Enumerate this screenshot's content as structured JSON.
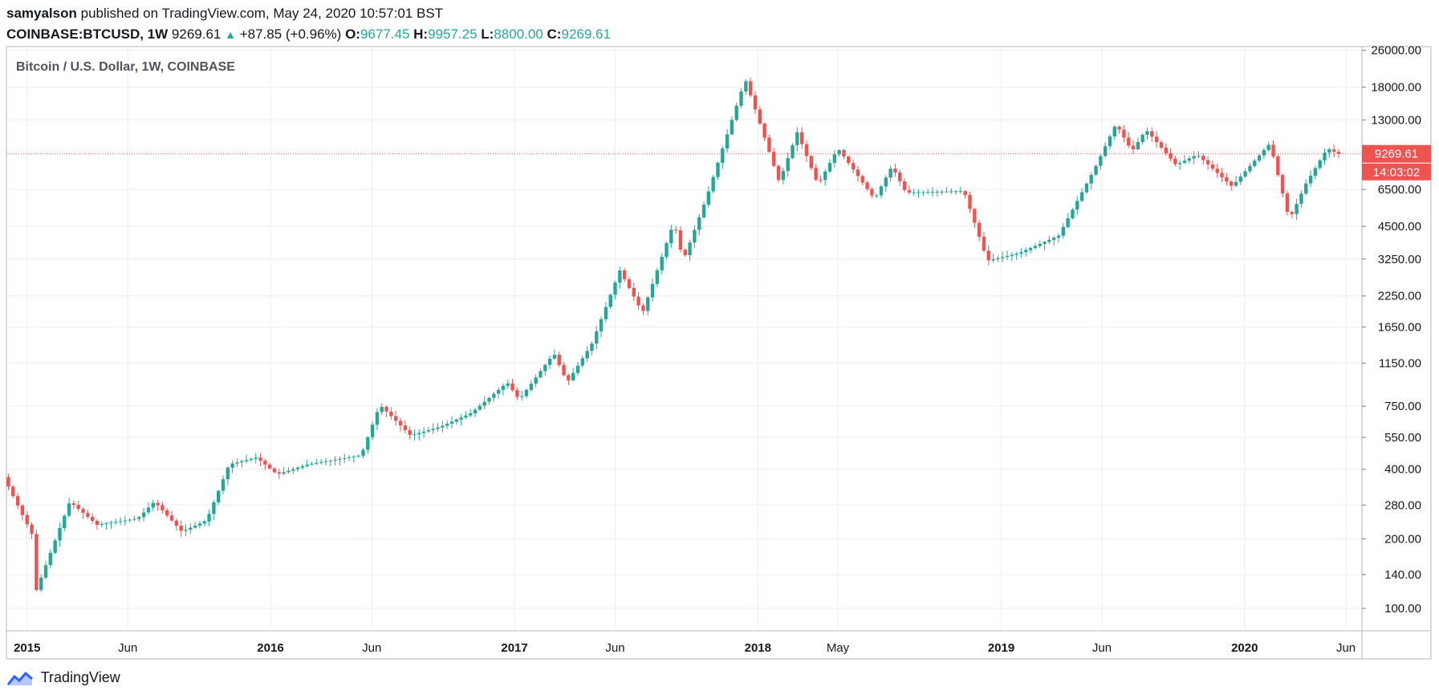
{
  "header": {
    "author": "samyalson",
    "published_text": "published on TradingView.com, May 24, 2020 10:57:01 BST",
    "symbol": "COINBASE:BTCUSD, 1W",
    "last": "9269.61",
    "change": "+87.85 (+0.96%)",
    "o_label": "O:",
    "o_value": "9677.45",
    "h_label": "H:",
    "h_value": "9957.25",
    "l_label": "L:",
    "l_value": "8800.00",
    "c_label": "C:",
    "c_value": "9269.61"
  },
  "footer": {
    "brand": "TradingView",
    "logo_icon": "tradingview-cloud-icon"
  },
  "colors": {
    "up": "#26a69a",
    "down": "#ef5350",
    "grid": "#e8eef3",
    "axis": "#787b86",
    "price_line": "#ef5350"
  },
  "chart_data": {
    "type": "candlestick",
    "title": "Bitcoin / U.S. Dollar, 1W, COINBASE",
    "scale": "log",
    "ylim": [
      80,
      27000
    ],
    "y_ticks": [
      100,
      140,
      200,
      280,
      400,
      550,
      750,
      1150,
      1650,
      2250,
      3250,
      4500,
      6500,
      9269.61,
      13000,
      18000,
      26000
    ],
    "y_tick_labels": [
      "100.00",
      "140.00",
      "200.00",
      "280.00",
      "400.00",
      "550.00",
      "750.00",
      "1150.00",
      "1650.00",
      "2250.00",
      "3250.00",
      "4500.00",
      "6500.00",
      "9269.61",
      "13000.00",
      "18000.00",
      "26000.00"
    ],
    "x_range": [
      "2014-12-01",
      "2020-06-25"
    ],
    "x_ticks": [
      {
        "date": "2015-01-01",
        "label": "2015",
        "bold": true
      },
      {
        "date": "2015-06-01",
        "label": "Jun",
        "bold": false
      },
      {
        "date": "2016-01-01",
        "label": "2016",
        "bold": true
      },
      {
        "date": "2016-06-01",
        "label": "Jun",
        "bold": false
      },
      {
        "date": "2017-01-01",
        "label": "2017",
        "bold": true
      },
      {
        "date": "2017-06-01",
        "label": "Jun",
        "bold": false
      },
      {
        "date": "2018-01-01",
        "label": "2018",
        "bold": true
      },
      {
        "date": "2018-05-01",
        "label": "May",
        "bold": false
      },
      {
        "date": "2019-01-01",
        "label": "2019",
        "bold": true
      },
      {
        "date": "2019-06-01",
        "label": "Jun",
        "bold": false
      },
      {
        "date": "2020-01-01",
        "label": "2020",
        "bold": true
      },
      {
        "date": "2020-06-01",
        "label": "Jun",
        "bold": false
      }
    ],
    "last_price": 9269.61,
    "last_price_label": "9269.61",
    "countdown_label": "14:03:02",
    "key_points": [
      {
        "date": "2014-12-01",
        "close": 370
      },
      {
        "date": "2015-01-12",
        "close": 210
      },
      {
        "date": "2015-01-14",
        "close": 110
      },
      {
        "date": "2015-03-10",
        "close": 290
      },
      {
        "date": "2015-04-20",
        "close": 230
      },
      {
        "date": "2015-06-20",
        "close": 245
      },
      {
        "date": "2015-07-15",
        "close": 290
      },
      {
        "date": "2015-08-25",
        "close": 215
      },
      {
        "date": "2015-10-01",
        "close": 240
      },
      {
        "date": "2015-11-04",
        "close": 420
      },
      {
        "date": "2015-12-15",
        "close": 450
      },
      {
        "date": "2016-01-15",
        "close": 380
      },
      {
        "date": "2016-03-01",
        "close": 420
      },
      {
        "date": "2016-05-20",
        "close": 460
      },
      {
        "date": "2016-06-17",
        "close": 760
      },
      {
        "date": "2016-08-02",
        "close": 560
      },
      {
        "date": "2016-09-15",
        "close": 610
      },
      {
        "date": "2016-11-01",
        "close": 700
      },
      {
        "date": "2016-12-25",
        "close": 950
      },
      {
        "date": "2017-01-12",
        "close": 800
      },
      {
        "date": "2017-03-05",
        "close": 1270
      },
      {
        "date": "2017-03-25",
        "close": 950
      },
      {
        "date": "2017-05-01",
        "close": 1400
      },
      {
        "date": "2017-06-12",
        "close": 2900
      },
      {
        "date": "2017-07-16",
        "close": 1900
      },
      {
        "date": "2017-09-01",
        "close": 4700
      },
      {
        "date": "2017-09-15",
        "close": 3200
      },
      {
        "date": "2017-10-20",
        "close": 6000
      },
      {
        "date": "2017-12-17",
        "close": 19500
      },
      {
        "date": "2018-02-06",
        "close": 7000
      },
      {
        "date": "2018-03-05",
        "close": 11500
      },
      {
        "date": "2018-04-05",
        "close": 6800
      },
      {
        "date": "2018-05-05",
        "close": 9800
      },
      {
        "date": "2018-06-29",
        "close": 5900
      },
      {
        "date": "2018-07-25",
        "close": 8200
      },
      {
        "date": "2018-08-15",
        "close": 6300
      },
      {
        "date": "2018-11-10",
        "close": 6400
      },
      {
        "date": "2018-12-15",
        "close": 3200
      },
      {
        "date": "2019-02-01",
        "close": 3450
      },
      {
        "date": "2019-04-01",
        "close": 4100
      },
      {
        "date": "2019-05-25",
        "close": 8000
      },
      {
        "date": "2019-06-26",
        "close": 12500
      },
      {
        "date": "2019-07-20",
        "close": 9500
      },
      {
        "date": "2019-08-10",
        "close": 11800
      },
      {
        "date": "2019-09-24",
        "close": 8300
      },
      {
        "date": "2019-10-26",
        "close": 9200
      },
      {
        "date": "2019-12-17",
        "close": 6700
      },
      {
        "date": "2020-02-12",
        "close": 10300
      },
      {
        "date": "2020-03-12",
        "close": 4800
      },
      {
        "date": "2020-04-06",
        "close": 6900
      },
      {
        "date": "2020-05-08",
        "close": 9800
      },
      {
        "date": "2020-05-24",
        "close": 9269.61
      }
    ]
  }
}
